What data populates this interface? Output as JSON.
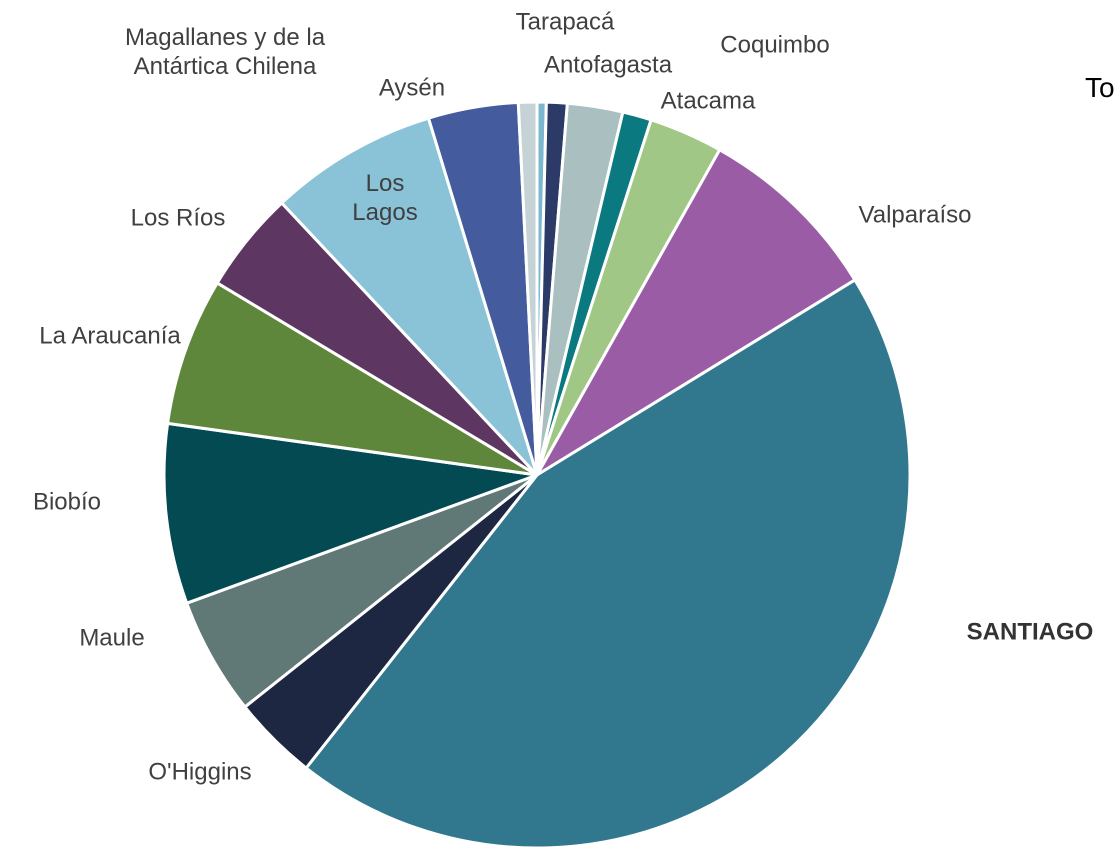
{
  "chart_data": {
    "type": "pie",
    "title": "To",
    "categories": [
      null,
      "Tarapacá",
      "Antofagasta",
      "Atacama",
      "Coquimbo",
      "Valparaíso",
      "SANTIAGO",
      "O'Higgins",
      "Maule",
      "Biobío",
      "La Araucanía",
      "Los Ríos",
      "Los Lagos",
      "Aysén",
      "Magallanes y de la Antártica Chilena"
    ],
    "values": [
      0.4,
      0.9,
      2.4,
      1.25,
      3.2,
      8.1,
      44.4,
      3.7,
      5.1,
      7.8,
      6.4,
      4.4,
      7.3,
      3.9,
      0.8
    ],
    "colors": [
      "#7bb8d0",
      "#2b3a67",
      "#aabfc0",
      "#0b7a80",
      "#a0c785",
      "#9b5ca6",
      "#31788f",
      "#1e2742",
      "#607876",
      "#034a52",
      "#5f873c",
      "#5d3761",
      "#8ac3d8",
      "#445c9e",
      "#c5d3d6"
    ]
  }
}
